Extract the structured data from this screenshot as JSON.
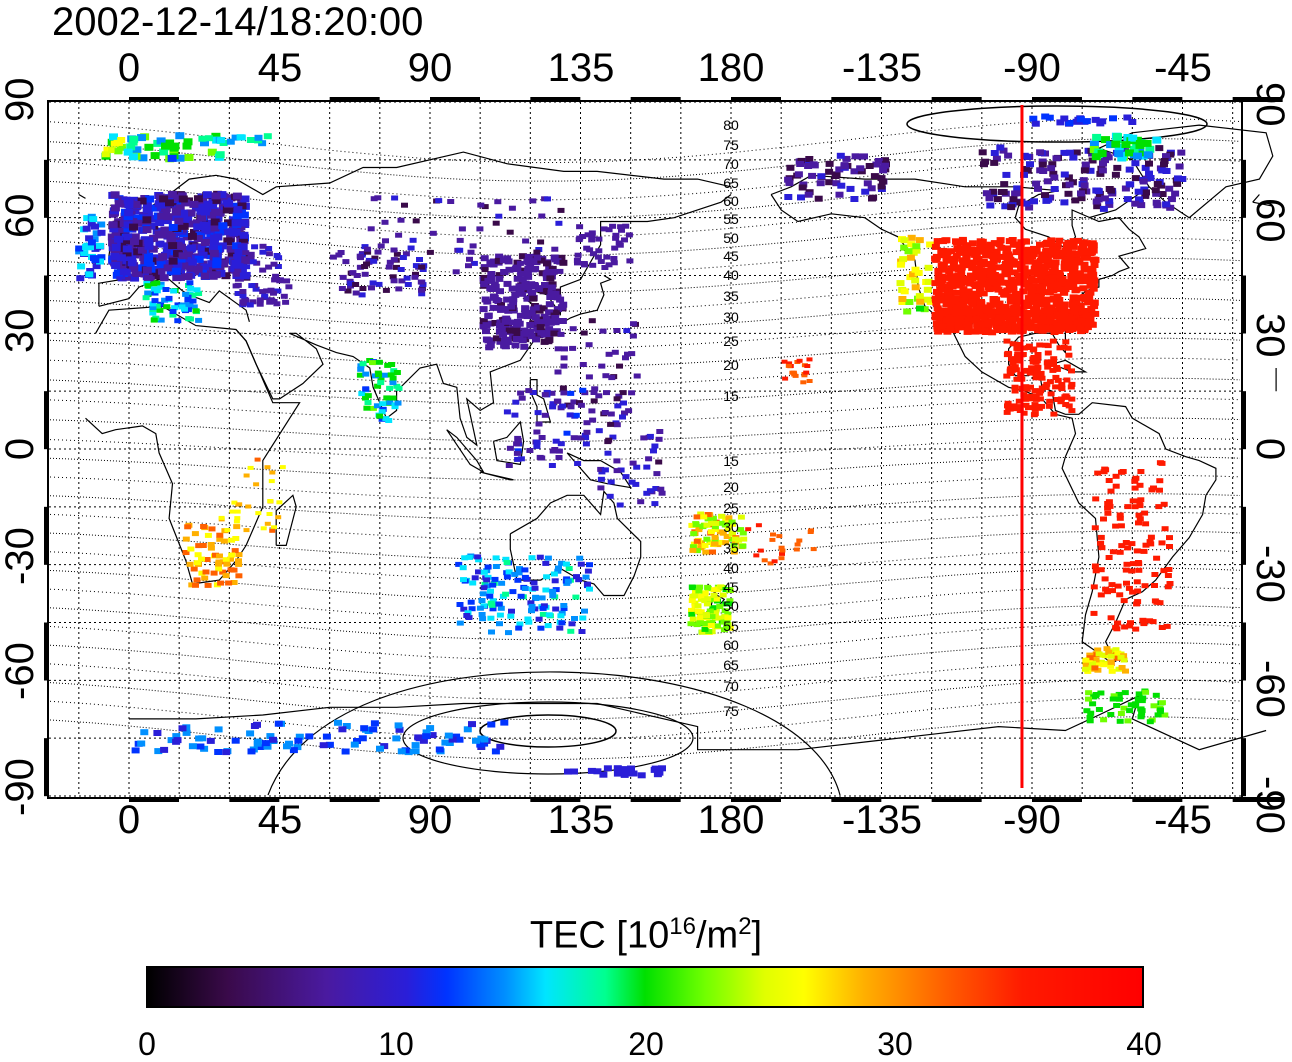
{
  "title": "2002-12-14/18:20:00",
  "axes": {
    "top_ticks": [
      "0",
      "45",
      "90",
      "135",
      "180",
      "-135",
      "-90",
      "-45"
    ],
    "bottom_ticks": [
      "0",
      "45",
      "90",
      "135",
      "180",
      "-135",
      "-90",
      "-45"
    ],
    "left_ticks": [
      "90",
      "60",
      "30",
      "0",
      "-30",
      "-60",
      "-90"
    ],
    "right_ticks": [
      "90",
      "60",
      "30",
      "0",
      "-30",
      "-60",
      "-90"
    ]
  },
  "contour_labels_north": [
    "80",
    "75",
    "70",
    "65",
    "60",
    "55",
    "50",
    "45",
    "40",
    "35",
    "30",
    "25",
    "20",
    "15"
  ],
  "contour_labels_south": [
    "15",
    "20",
    "25",
    "30",
    "35",
    "40",
    "45",
    "50",
    "55",
    "60",
    "65",
    "70",
    "75"
  ],
  "colorbar": {
    "title_text": "TEC  [10",
    "title_sup1": "16",
    "title_mid": "/m",
    "title_sup2": "2",
    "title_end": "]",
    "ticks": [
      "0",
      "10",
      "20",
      "30",
      "40"
    ],
    "range": [
      0,
      40
    ]
  },
  "map": {
    "lon_grid_step": 15,
    "lat_grid_step": 15,
    "marker_longitude": -93,
    "marker_color": "#ff0000"
  },
  "colors": {
    "low": "#4a1aa0",
    "mid_low": "#0033ff",
    "mid": "#00ff90",
    "mid_high": "#ffff00",
    "high": "#ff0000"
  }
}
